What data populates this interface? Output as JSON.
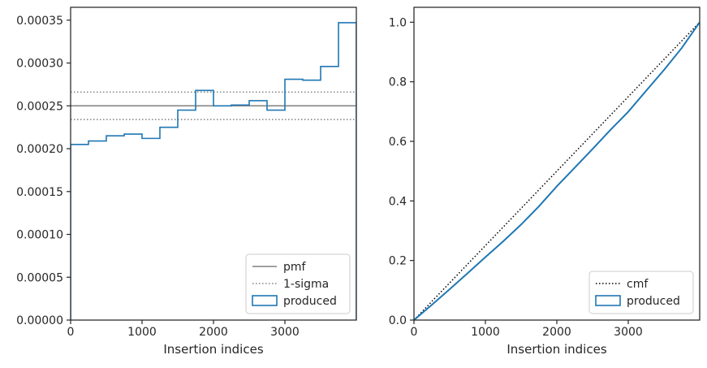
{
  "chart_data": [
    {
      "type": "line",
      "xlabel": "Insertion indices",
      "ylabel": "",
      "xlim": [
        0,
        4000
      ],
      "ylim": [
        0,
        0.000365
      ],
      "xticks": [
        0,
        1000,
        2000,
        3000
      ],
      "xtick_labels": [
        "0",
        "1000",
        "2000",
        "3000"
      ],
      "yticks": [
        0,
        5e-05,
        0.0001,
        0.00015,
        0.0002,
        0.00025,
        0.0003,
        0.00035
      ],
      "ytick_labels": [
        "0.00000",
        "0.00005",
        "0.00010",
        "0.00015",
        "0.00020",
        "0.00025",
        "0.00030",
        "0.00035"
      ],
      "legend_position": "lower-right",
      "series": [
        {
          "name": "pmf",
          "style": "solid",
          "color": "#808080",
          "y": 0.00025
        },
        {
          "name": "1-sigma",
          "style": "dotted",
          "color": "#808080",
          "y": [
            0.000234,
            0.000266
          ]
        },
        {
          "name": "produced",
          "style": "step",
          "color": "#1f77b4",
          "bin_edges": [
            0,
            250,
            500,
            750,
            1000,
            1250,
            1500,
            1750,
            2000,
            2250,
            2500,
            2750,
            3000,
            3250,
            3500,
            3750,
            4000
          ],
          "values": [
            0.000205,
            0.000209,
            0.000215,
            0.000217,
            0.000212,
            0.000225,
            0.000245,
            0.000268,
            0.00025,
            0.000251,
            0.000256,
            0.000245,
            0.000281,
            0.00028,
            0.000296,
            0.000347
          ]
        }
      ]
    },
    {
      "type": "line",
      "xlabel": "Insertion indices",
      "ylabel": "",
      "xlim": [
        0,
        4000
      ],
      "ylim": [
        0,
        1.05
      ],
      "xticks": [
        0,
        1000,
        2000,
        3000
      ],
      "xtick_labels": [
        "0",
        "1000",
        "2000",
        "3000"
      ],
      "yticks": [
        0,
        0.2,
        0.4,
        0.6,
        0.8,
        1.0
      ],
      "ytick_labels": [
        "0.0",
        "0.2",
        "0.4",
        "0.6",
        "0.8",
        "1.0"
      ],
      "legend_position": "lower-right",
      "series": [
        {
          "name": "cmf",
          "style": "dotted",
          "color": "#000000",
          "x": [
            0,
            4000
          ],
          "y": [
            0,
            1
          ]
        },
        {
          "name": "produced",
          "style": "step",
          "color": "#1f77b4",
          "x": [
            0,
            250,
            500,
            750,
            1000,
            1250,
            1500,
            1750,
            2000,
            2250,
            2500,
            2750,
            3000,
            3250,
            3500,
            3750,
            4000
          ],
          "y": [
            0,
            0.05125,
            0.1035,
            0.15725,
            0.2115,
            0.2645,
            0.32075,
            0.382,
            0.449,
            0.5115,
            0.57425,
            0.63825,
            0.6995,
            0.76975,
            0.83975,
            0.91375,
            1.0
          ]
        }
      ]
    }
  ]
}
